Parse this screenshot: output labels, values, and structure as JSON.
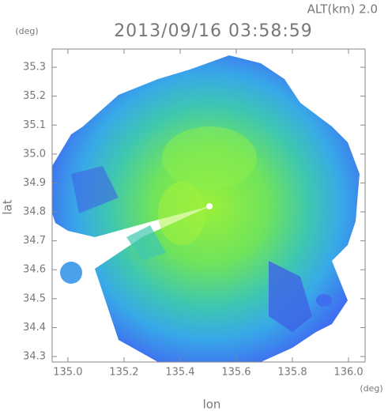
{
  "chart_data": {
    "type": "radar-map",
    "title": "2013/09/16 03:58:59",
    "subtitle": "ALT(km) 2.0",
    "x_label": "lon",
    "y_label": "lat",
    "x_unit": "(deg)",
    "y_unit": "(deg)",
    "xlim": [
      134.944,
      136.059
    ],
    "ylim": [
      34.281,
      35.363
    ],
    "xticks": [
      {
        "value": 135.0,
        "label": "135.0"
      },
      135.2,
      135.4,
      135.6,
      135.8,
      {
        "value": 136.0,
        "label": "136.0"
      }
    ],
    "yticks": [
      34.3,
      34.4,
      34.5,
      34.6,
      34.7,
      34.8,
      34.9,
      {
        "value": 35.0,
        "label": "35.0"
      },
      35.1,
      35.2,
      35.3
    ]
  }
}
